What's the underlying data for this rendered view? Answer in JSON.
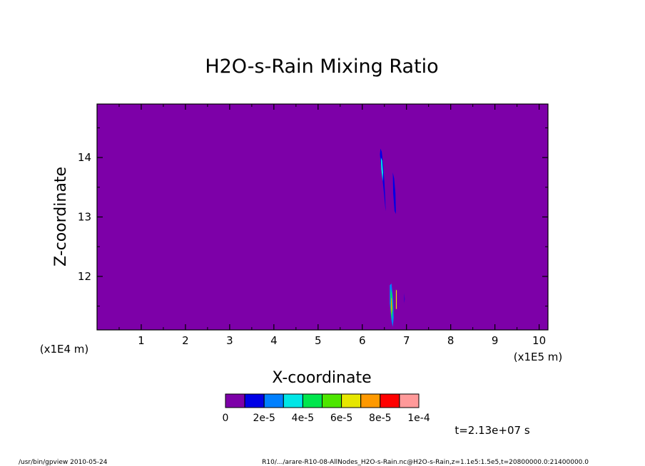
{
  "chart_data": {
    "type": "heatmap",
    "title": "H2O-s-Rain Mixing Ratio",
    "xlabel": "X-coordinate",
    "ylabel": "Z-coordinate",
    "x_scale_label": "(x1E5 m)",
    "y_scale_label": "(x1E4 m)",
    "xlim": [
      0.0,
      10.2
    ],
    "ylim": [
      11.1,
      14.9
    ],
    "x_ticks": [
      "1",
      "2",
      "3",
      "4",
      "5",
      "6",
      "7",
      "8",
      "9",
      "10"
    ],
    "y_ticks": [
      "12",
      "13",
      "14"
    ],
    "background_value": 0,
    "colorbar": {
      "colors": [
        "#7d00a8",
        "#0000e6",
        "#0080ff",
        "#00e6e6",
        "#00e64d",
        "#4de600",
        "#e6e600",
        "#ff9900",
        "#ff0000",
        "#ff9999"
      ],
      "labels": [
        "0",
        "2e-5",
        "4e-5",
        "6e-5",
        "8e-5",
        "1e-4"
      ]
    },
    "features": [
      {
        "x": [
          6.4,
          6.41,
          6.44,
          6.47,
          6.5,
          6.52,
          6.53,
          6.52,
          6.49,
          6.45,
          6.41
        ],
        "z": [
          14.05,
          14.15,
          14.1,
          13.9,
          13.6,
          13.3,
          13.1,
          13.15,
          13.4,
          13.7,
          13.95
        ],
        "level": 1
      },
      {
        "x": [
          6.42,
          6.45,
          6.47,
          6.46,
          6.43
        ],
        "z": [
          14.0,
          13.95,
          13.75,
          13.6,
          13.8
        ],
        "level": 3
      },
      {
        "x": [
          6.69,
          6.72,
          6.75,
          6.76,
          6.73,
          6.7
        ],
        "z": [
          13.75,
          13.65,
          13.4,
          13.05,
          13.1,
          13.4
        ],
        "level": 1
      },
      {
        "x": [
          6.62,
          6.66,
          6.7,
          6.71,
          6.69,
          6.66,
          6.62
        ],
        "z": [
          11.85,
          11.88,
          11.6,
          11.3,
          11.15,
          11.25,
          11.55
        ],
        "level": 2
      },
      {
        "x": [
          6.64,
          6.67,
          6.69,
          6.67,
          6.64
        ],
        "z": [
          11.8,
          11.7,
          11.45,
          11.25,
          11.45
        ],
        "level": 4
      },
      {
        "x": [
          6.652,
          6.668,
          6.675,
          6.66,
          6.648
        ],
        "z": [
          11.65,
          11.62,
          11.45,
          11.35,
          11.48
        ],
        "level": 7
      },
      {
        "x": [
          6.76,
          6.78,
          6.78,
          6.76
        ],
        "z": [
          11.78,
          11.76,
          11.45,
          11.45
        ],
        "level": 6
      },
      {
        "x": [
          6.95,
          6.96,
          6.95
        ],
        "z": [
          11.72,
          11.62,
          11.55
        ],
        "level": 1
      }
    ]
  },
  "time_label": "t=2.13e+07 s",
  "footer_left": "/usr/bin/gpview  2010-05-24",
  "footer_right": "R10/.../arare-R10-08-AllNodes_H2O-s-Rain.nc@H2O-s-Rain,z=1.1e5:1.5e5,t=20800000.0:21400000.0"
}
